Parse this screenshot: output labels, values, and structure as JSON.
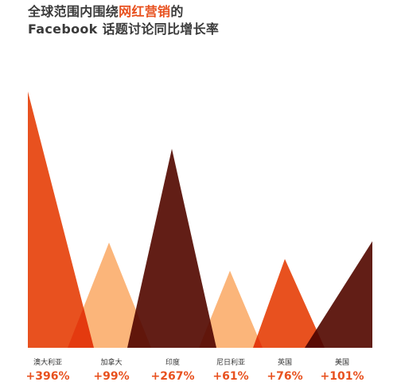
{
  "title": {
    "line1_prefix": "全球范围内围绕",
    "line1_highlight": "网红营销",
    "line1_suffix": "的",
    "line2": "Facebook 话题讨论同比增长率"
  },
  "colors": {
    "accent": "#E8511F",
    "peach": "#FBB57A",
    "dark": "#621E16",
    "text": "#3a3a3a"
  },
  "chart_data": {
    "type": "bar",
    "categories": [
      "澳大利亚",
      "加拿大",
      "印度",
      "尼日利亚",
      "英国",
      "美国"
    ],
    "values": [
      396,
      99,
      267,
      61,
      76,
      101
    ],
    "value_labels": [
      "+396%",
      "+99%",
      "+267%",
      "+61%",
      "+76%",
      "+101%"
    ],
    "bar_colors": [
      "#E8511F",
      "#FBB57A",
      "#621E16",
      "#FBB57A",
      "#E8511F",
      "#621E16"
    ],
    "value_label_color": "#E8511F",
    "unit": "%",
    "xlabel": "",
    "ylabel": "",
    "grid": false
  }
}
